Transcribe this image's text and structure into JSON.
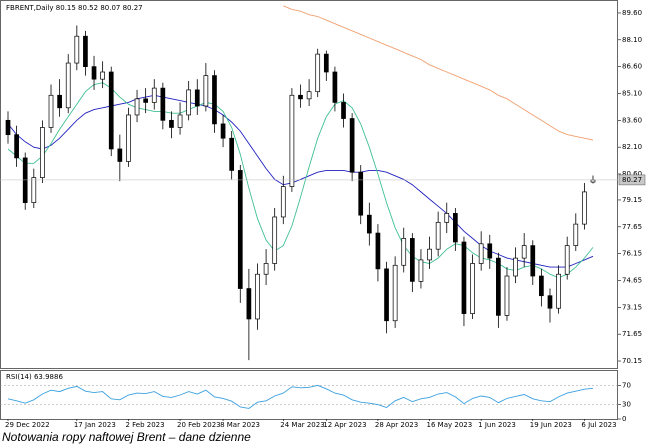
{
  "chart_data": [
    {
      "type": "candlestick",
      "title": "FBRENT,Daily 80.15 80.52 80.07 80.27",
      "categories": [
        "29 Dec 2022",
        null,
        null,
        null,
        null,
        null,
        null,
        null,
        "17 Jan 2023",
        null,
        null,
        null,
        null,
        null,
        "2 Feb 2023",
        null,
        null,
        null,
        null,
        null,
        "20 Feb 2023",
        null,
        null,
        null,
        null,
        "8 Mar 2023",
        null,
        null,
        null,
        null,
        null,
        null,
        "24 Mar 2023",
        null,
        null,
        null,
        null,
        "12 Apr 2023",
        null,
        null,
        null,
        null,
        null,
        "28 Apr 2023",
        null,
        null,
        null,
        null,
        null,
        "16 May 2023",
        null,
        null,
        null,
        null,
        null,
        "1 Jun 2023",
        null,
        null,
        null,
        null,
        null,
        "19 Jun 2023",
        null,
        null,
        null,
        null,
        null,
        "6 Jul 2023",
        null
      ],
      "open": [
        83.6,
        82.8,
        81.5,
        79.0,
        80.4,
        83.2,
        85.0,
        84.3,
        86.8,
        88.3,
        86.6,
        85.9,
        86.3,
        82.0,
        81.3,
        83.9,
        84.8,
        84.6,
        85.4,
        83.6,
        83.2,
        83.9,
        85.3,
        84.4,
        86.1,
        83.4,
        82.6,
        80.8,
        74.2,
        72.5,
        75.0,
        75.6,
        78.2,
        79.9,
        85.0,
        84.8,
        85.2,
        87.3,
        86.3,
        84.6,
        83.7,
        80.7,
        78.3,
        77.3,
        75.3,
        72.4,
        75.5,
        77.0,
        74.6,
        75.8,
        76.4,
        77.9,
        78.4,
        76.8,
        72.8,
        75.6,
        76.7,
        75.9,
        72.7,
        74.9,
        75.9,
        76.6,
        74.9,
        73.8,
        73.1,
        75.0,
        76.6,
        77.8,
        80.15
      ],
      "high": [
        84.1,
        83.3,
        81.8,
        80.9,
        83.6,
        85.6,
        85.9,
        87.3,
        88.9,
        88.6,
        87.2,
        86.9,
        86.6,
        82.8,
        84.3,
        85.3,
        85.4,
        85.9,
        85.7,
        84.1,
        84.6,
        85.8,
        85.9,
        86.8,
        86.4,
        83.9,
        83.0,
        81.1,
        75.3,
        75.6,
        76.4,
        78.7,
        80.5,
        85.4,
        85.6,
        85.9,
        87.6,
        87.5,
        86.6,
        85.1,
        84.0,
        81.1,
        79.0,
        77.8,
        75.7,
        76.0,
        77.6,
        77.3,
        76.4,
        77.1,
        78.5,
        79.0,
        78.7,
        77.1,
        76.1,
        77.4,
        77.2,
        76.2,
        75.4,
        76.5,
        77.3,
        76.9,
        75.3,
        74.2,
        75.5,
        77.1,
        78.4,
        80.1,
        80.52
      ],
      "low": [
        82.3,
        81.0,
        78.6,
        78.7,
        80.1,
        82.9,
        83.8,
        84.0,
        86.4,
        86.1,
        85.3,
        85.4,
        81.6,
        80.2,
        81.0,
        83.5,
        84.0,
        84.2,
        83.1,
        82.6,
        82.8,
        83.6,
        83.9,
        84.1,
        82.9,
        82.1,
        80.3,
        73.4,
        70.2,
        71.9,
        74.4,
        75.2,
        77.8,
        79.6,
        84.3,
        84.4,
        84.9,
        85.8,
        84.1,
        83.2,
        80.2,
        77.8,
        76.6,
        74.6,
        71.7,
        72.0,
        75.1,
        74.0,
        74.2,
        75.3,
        76.0,
        77.3,
        76.3,
        72.1,
        72.5,
        75.2,
        75.3,
        72.0,
        72.4,
        74.5,
        75.4,
        74.4,
        73.2,
        72.3,
        72.8,
        74.7,
        76.3,
        77.5,
        80.07
      ],
      "close": [
        82.8,
        81.5,
        79.0,
        80.4,
        83.2,
        85.0,
        84.3,
        86.8,
        88.3,
        86.6,
        85.9,
        86.3,
        82.0,
        81.3,
        83.9,
        84.8,
        84.6,
        85.4,
        83.6,
        83.2,
        83.9,
        85.3,
        84.4,
        86.1,
        83.4,
        82.6,
        80.8,
        74.2,
        72.5,
        75.0,
        75.6,
        78.2,
        79.9,
        85.0,
        84.8,
        85.2,
        87.3,
        86.3,
        84.6,
        83.7,
        80.7,
        78.3,
        77.3,
        75.3,
        72.4,
        75.5,
        77.0,
        74.6,
        75.8,
        76.4,
        77.9,
        78.4,
        76.8,
        72.8,
        75.6,
        76.7,
        75.9,
        72.7,
        74.9,
        75.9,
        76.6,
        74.9,
        73.8,
        73.1,
        75.0,
        76.6,
        77.8,
        79.6,
        80.27
      ],
      "series": [
        {
          "color": "#f0a070",
          "values": [
            null,
            null,
            null,
            null,
            null,
            null,
            null,
            null,
            null,
            null,
            null,
            null,
            null,
            null,
            null,
            null,
            null,
            null,
            null,
            null,
            null,
            null,
            null,
            null,
            null,
            null,
            null,
            null,
            null,
            null,
            null,
            null,
            90.0,
            89.8,
            89.7,
            89.5,
            89.4,
            89.2,
            89.0,
            88.8,
            88.6,
            88.4,
            88.2,
            88.0,
            87.8,
            87.6,
            87.4,
            87.2,
            87.0,
            86.7,
            86.5,
            86.3,
            86.1,
            85.9,
            85.7,
            85.5,
            85.3,
            85.0,
            84.8,
            84.5,
            84.2,
            83.9,
            83.6,
            83.3,
            83.0,
            82.8,
            82.7,
            82.6,
            82.5
          ]
        },
        {
          "color": "#2020c0",
          "values": [
            83.4,
            82.8,
            82.4,
            82.1,
            82.0,
            82.2,
            82.6,
            83.1,
            83.6,
            84.0,
            84.2,
            84.3,
            84.4,
            84.5,
            84.6,
            84.8,
            84.9,
            85.0,
            84.9,
            84.8,
            84.7,
            84.6,
            84.5,
            84.4,
            84.2,
            83.9,
            83.5,
            83.0,
            82.3,
            81.6,
            80.9,
            80.3,
            80.0,
            80.1,
            80.3,
            80.5,
            80.7,
            80.8,
            80.8,
            80.8,
            80.7,
            80.7,
            80.8,
            80.8,
            80.7,
            80.5,
            80.3,
            80.0,
            79.6,
            79.2,
            78.8,
            78.4,
            77.9,
            77.4,
            77.0,
            76.6,
            76.3,
            76.1,
            75.9,
            75.8,
            75.7,
            75.6,
            75.5,
            75.4,
            75.4,
            75.4,
            75.6,
            75.8,
            76.0
          ]
        },
        {
          "color": "#40c090",
          "values": [
            82.0,
            81.6,
            81.2,
            81.2,
            81.6,
            82.3,
            83.1,
            83.8,
            84.5,
            85.2,
            85.6,
            85.7,
            85.4,
            84.9,
            84.5,
            84.3,
            84.2,
            84.1,
            84.1,
            84.0,
            84.0,
            84.2,
            84.4,
            84.6,
            84.5,
            84.1,
            83.2,
            81.7,
            79.8,
            78.1,
            76.9,
            76.3,
            76.6,
            77.7,
            79.3,
            81.0,
            82.6,
            83.8,
            84.5,
            84.7,
            84.3,
            83.4,
            82.1,
            80.6,
            79.0,
            77.6,
            76.6,
            76.0,
            75.7,
            75.6,
            75.9,
            76.4,
            76.7,
            76.6,
            76.2,
            75.9,
            75.8,
            75.6,
            75.3,
            75.2,
            75.4,
            75.5,
            75.3,
            75.0,
            74.8,
            75.0,
            75.4,
            75.9,
            76.5
          ]
        }
      ],
      "ylim": [
        69.76,
        90.1
      ],
      "yticks": [
        {
          "value": 89.6,
          "label": "89.60"
        },
        {
          "value": 88.1,
          "label": "88.10"
        },
        {
          "value": 86.6,
          "label": "86.60"
        },
        {
          "value": 85.1,
          "label": "85.10"
        },
        {
          "value": 83.6,
          "label": "83.60"
        },
        {
          "value": 82.1,
          "label": "82.10"
        },
        {
          "value": 80.6,
          "label": "80.60"
        },
        79.15,
        77.65,
        76.15,
        74.65,
        73.15,
        71.65,
        70.15
      ],
      "grid": false,
      "up_color": "#ffffff",
      "down_color": "#000000"
    },
    {
      "type": "line",
      "title": "RSI(14) 63.9886",
      "series": [
        {
          "color": "#3aa0e0",
          "values": [
            42,
            38,
            33,
            40,
            52,
            60,
            57,
            64,
            68,
            58,
            55,
            57,
            42,
            40,
            50,
            54,
            53,
            57,
            47,
            45,
            50,
            57,
            52,
            60,
            46,
            43,
            37,
            25,
            22,
            35,
            38,
            48,
            54,
            67,
            65,
            66,
            70,
            63,
            54,
            50,
            40,
            35,
            33,
            30,
            24,
            38,
            45,
            36,
            42,
            45,
            52,
            55,
            46,
            32,
            43,
            48,
            45,
            34,
            43,
            47,
            51,
            42,
            38,
            36,
            46,
            54,
            58,
            62,
            63.9886
          ]
        }
      ],
      "ylim": [
        0,
        100
      ],
      "yticks": [
        70,
        30,
        0
      ],
      "levels": [
        70,
        30
      ]
    }
  ],
  "caption": "Notowania ropy naftowej Brent – dane dzienne"
}
